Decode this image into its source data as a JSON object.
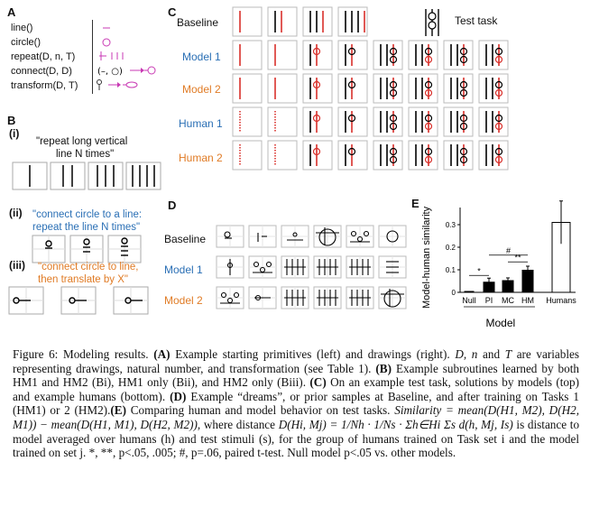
{
  "panels": {
    "a": "A",
    "b": "B",
    "c": "C",
    "d": "D",
    "e": "E"
  },
  "panel_a": {
    "primitives": [
      "line()",
      "circle()",
      "repeat(D, n, T)",
      "connect(D, D)",
      "transform(D, T)"
    ],
    "connect_glyph": "(–, ○)"
  },
  "panel_b": {
    "sub_i": "(i)",
    "sub_ii": "(ii)",
    "sub_iii": "(iii)",
    "quote_i_1": "\"repeat long vertical",
    "quote_i_2": "line N times\"",
    "quote_ii_1": "\"connect circle to a line:",
    "quote_ii_2": "repeat the line N times\"",
    "quote_iii_1": "\"connect circle to line,",
    "quote_iii_2": "then translate by X\""
  },
  "panel_c": {
    "rows": [
      "Baseline",
      "Model 1",
      "Model 2",
      "Human 1",
      "Human 2"
    ],
    "test_task_label": "Test task"
  },
  "panel_d": {
    "rows": [
      "Baseline",
      "Model 1",
      "Model 2"
    ]
  },
  "colors": {
    "blue": "#2a6fb5",
    "orange": "#e07b25",
    "red": "#d9302b",
    "magenta": "#c93ab4"
  },
  "chart_data": {
    "type": "bar",
    "categories": [
      "Null",
      "PI",
      "MC",
      "HM",
      "Humans"
    ],
    "values": [
      0.0,
      0.045,
      0.052,
      0.098,
      0.31
    ],
    "errors": [
      0.001,
      0.018,
      0.012,
      0.018,
      0.095
    ],
    "ylabel": "Model-human similarity",
    "xlabel": "Model",
    "yticks": [
      "0",
      "0.1",
      "0.2",
      "0.3"
    ],
    "ylim": [
      0,
      0.36
    ],
    "sig_star": "*",
    "sig_double": "**",
    "sig_hash": "#"
  },
  "caption": {
    "fig": "Figure 6: Modeling results.",
    "a_tag": "(A)",
    "a_text": "Example starting primitives (left) and drawings (right).",
    "d": "D,",
    "n": "n",
    "and": "and",
    "t_text": "are variables representing drawings, natural number, and transformation (see Table 1).",
    "b_tag": "(B)",
    "b_text": "Example subroutines learned by both HM1 and HM2 (Bi), HM1 only (Bii), and HM2 only (Biii).",
    "c_tag": "(C)",
    "c_text": "On an example test task, solutions by models (top) and example humans (bottom).",
    "d_tag": "(D)",
    "d_text": "Example “dreams”, or prior samples at Baseline, and after training on Tasks 1 (HM1) or 2 (HM2).",
    "e_tag": "(E)",
    "e_text": "Comparing human and model behavior on test tasks.",
    "formula1": "Similarity = mean(D(H1, M2), D(H2, M1)) − mean(D(H1, M1), D(H2, M2)),",
    "where": "where distance",
    "formula2": "D(Hi, Mj) = 1/Nh · 1/Ns · Σh∈Hi Σs d(h, Mj, Is)",
    "is": "is",
    "rest": "distance to model averaged over humans (h) and test stimuli (s), for the group of humans trained on Task set i and the model trained on set j. *, **, p<.05, .005; #, p=.06, paired t-test. Null model p<.05 vs. other models."
  }
}
